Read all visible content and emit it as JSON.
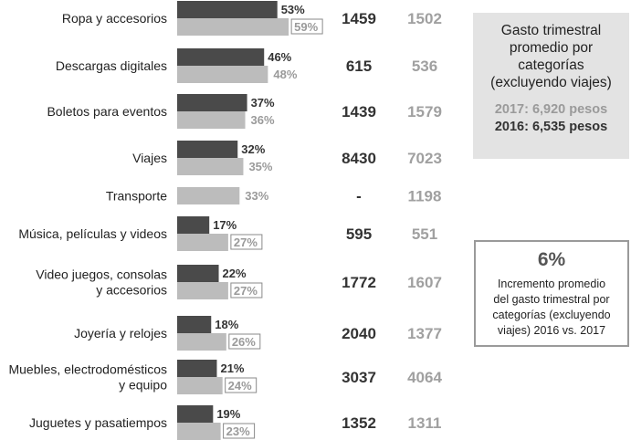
{
  "chart_data": {
    "type": "bar",
    "orientation": "horizontal",
    "categories": [
      "Ropa y accesorios",
      "Descargas digitales",
      "Boletos para eventos",
      "Viajes",
      "Transporte",
      "Música, películas y videos",
      "Video juegos, consolas\ny accesorios",
      "Joyería y relojes",
      "Muebles, electrodomésticos\ny equipo",
      "Juguetes y pasatiempos"
    ],
    "series": [
      {
        "name": "2016",
        "color": "#4a4a4a",
        "label_color": "#333333",
        "values": [
          53,
          46,
          37,
          32,
          null,
          17,
          22,
          18,
          21,
          19
        ],
        "labels": [
          "53%",
          "46%",
          "37%",
          "32%",
          "",
          "17%",
          "22%",
          "18%",
          "21%",
          "19%"
        ]
      },
      {
        "name": "2017",
        "color": "#bcbcbc",
        "label_color": "#9a9a9a",
        "values": [
          59,
          48,
          36,
          35,
          33,
          27,
          27,
          26,
          24,
          23
        ],
        "labels": [
          "59%",
          "48%",
          "36%",
          "35%",
          "33%",
          "27%",
          "27%",
          "26%",
          "24%",
          "23%"
        ],
        "boxed": [
          true,
          false,
          false,
          false,
          false,
          true,
          true,
          true,
          true,
          true
        ]
      }
    ],
    "spend_2016": [
      "1459",
      "615",
      "1439",
      "8430",
      "-",
      "595",
      "1772",
      "2040",
      "3037",
      "1352"
    ],
    "spend_2017": [
      "1502",
      "536",
      "1579",
      "7023",
      "1198",
      "551",
      "1607",
      "1377",
      "4064",
      "1311"
    ],
    "value_unit": "%",
    "xlim": [
      0,
      70
    ]
  },
  "summary_box": {
    "title_lines": [
      "Gasto trimestral",
      "promedio por",
      "categorías",
      "(excluyendo viajes)"
    ],
    "line_2017": "2017: 6,920 pesos",
    "line_2016": "2016: 6,535 pesos"
  },
  "increase_box": {
    "value": "6%",
    "desc_lines": [
      "Incremento promedio",
      "del gasto trimestral por",
      "categorías (excluyendo",
      "viajes) 2016 vs. 2017"
    ]
  }
}
